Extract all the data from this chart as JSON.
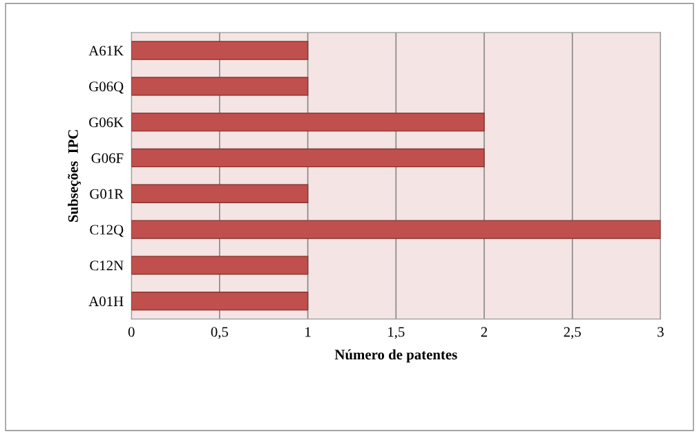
{
  "chart_data": {
    "type": "bar",
    "orientation": "horizontal",
    "xlabel": "Número de patentes",
    "ylabel": "Subseções  IPC",
    "categories": [
      "A61K",
      "G06Q",
      "G06K",
      "G06F",
      "G01R",
      "C12Q",
      "C12N",
      "A01H"
    ],
    "values": [
      1,
      1,
      2,
      2,
      1,
      3,
      1,
      1
    ],
    "color": "#c0504d",
    "xlim": [
      0,
      3
    ],
    "xticks": [
      0,
      {
        "value": 0.5,
        "label": "0,5"
      },
      1,
      {
        "value": 1.5,
        "label": "1,5"
      },
      2,
      {
        "value": 2.5,
        "label": "2,5"
      },
      3
    ],
    "grid": "x",
    "legend": false
  }
}
